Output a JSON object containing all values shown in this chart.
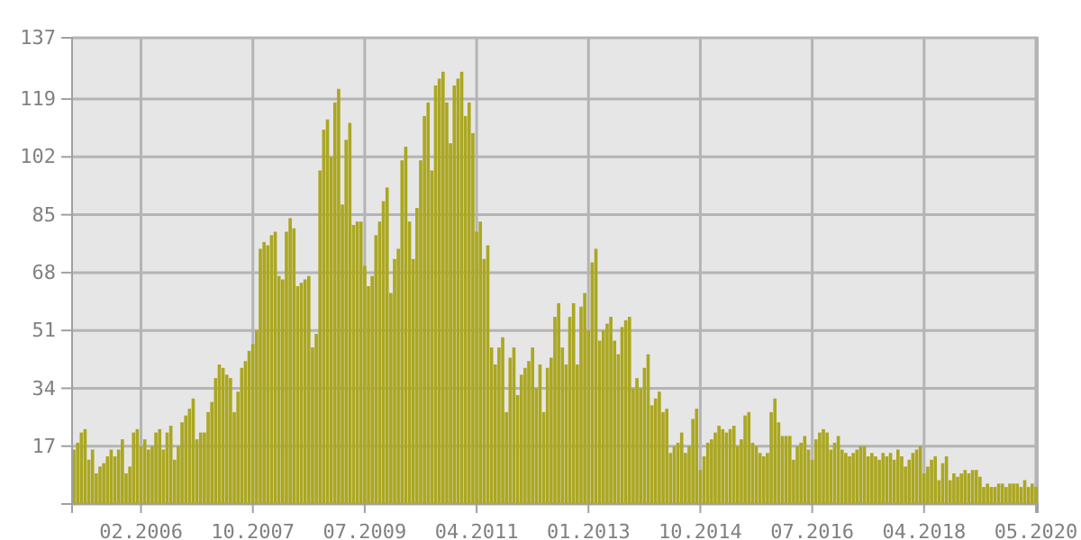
{
  "chart_data": {
    "type": "bar",
    "categories": [
      null,
      null,
      null,
      null,
      null,
      null,
      null,
      null,
      null,
      null,
      null,
      null,
      null,
      null,
      null,
      null,
      null,
      null,
      "02.2006",
      null,
      null,
      null,
      null,
      null,
      null,
      null,
      null,
      null,
      null,
      null,
      null,
      null,
      null,
      null,
      null,
      null,
      null,
      null,
      null,
      null,
      null,
      null,
      null,
      null,
      null,
      null,
      null,
      null,
      "10.2007",
      null,
      null,
      null,
      null,
      null,
      null,
      null,
      null,
      null,
      null,
      null,
      null,
      null,
      null,
      null,
      null,
      null,
      null,
      null,
      null,
      null,
      null,
      null,
      null,
      null,
      null,
      null,
      null,
      null,
      "07.2009",
      null,
      null,
      null,
      null,
      null,
      null,
      null,
      null,
      null,
      null,
      null,
      null,
      null,
      null,
      null,
      null,
      null,
      null,
      null,
      null,
      null,
      null,
      null,
      null,
      null,
      null,
      null,
      null,
      null,
      "04.2011",
      null,
      null,
      null,
      null,
      null,
      null,
      null,
      null,
      null,
      null,
      null,
      null,
      null,
      null,
      null,
      null,
      null,
      null,
      null,
      null,
      null,
      null,
      null,
      null,
      null,
      null,
      null,
      null,
      null,
      "01.2013",
      null,
      null,
      null,
      null,
      null,
      null,
      null,
      null,
      null,
      null,
      null,
      null,
      null,
      null,
      null,
      null,
      null,
      null,
      null,
      null,
      null,
      null,
      null,
      null,
      null,
      null,
      null,
      null,
      null,
      "10.2014",
      null,
      null,
      null,
      null,
      null,
      null,
      null,
      null,
      null,
      null,
      null,
      null,
      null,
      null,
      null,
      null,
      null,
      null,
      null,
      null,
      null,
      null,
      null,
      null,
      null,
      null,
      null,
      null,
      null,
      "07.2016",
      null,
      null,
      null,
      null,
      null,
      null,
      null,
      null,
      null,
      null,
      null,
      null,
      null,
      null,
      null,
      null,
      null,
      null,
      null,
      null,
      null,
      null,
      null,
      null,
      null,
      null,
      null,
      null,
      null,
      "04.2018",
      null,
      null,
      null,
      null,
      null,
      null,
      null,
      null,
      null,
      null,
      null,
      null,
      null,
      null,
      null,
      null,
      null,
      null,
      null,
      null,
      null,
      null,
      null,
      null,
      null,
      null,
      null,
      null,
      null,
      "05.2020"
    ],
    "values": [
      16,
      18,
      21,
      22,
      13,
      16,
      9,
      11,
      12,
      14,
      16,
      14,
      16,
      19,
      9,
      11,
      21,
      22,
      17,
      19,
      16,
      17,
      21,
      22,
      16,
      21,
      23,
      13,
      17,
      24,
      26,
      28,
      31,
      19,
      21,
      21,
      27,
      30,
      37,
      41,
      40,
      38,
      37,
      27,
      33,
      40,
      42,
      45,
      47,
      51,
      75,
      77,
      76,
      79,
      80,
      67,
      66,
      80,
      84,
      81,
      64,
      65,
      66,
      67,
      46,
      50,
      98,
      110,
      113,
      102,
      118,
      122,
      88,
      107,
      112,
      82,
      83,
      83,
      70,
      64,
      67,
      79,
      83,
      89,
      93,
      62,
      72,
      75,
      101,
      105,
      83,
      72,
      87,
      101,
      114,
      118,
      98,
      123,
      125,
      127,
      118,
      106,
      123,
      125,
      127,
      114,
      118,
      109,
      80,
      83,
      72,
      76,
      46,
      41,
      46,
      49,
      27,
      43,
      46,
      32,
      38,
      40,
      42,
      46,
      34,
      41,
      27,
      40,
      43,
      55,
      59,
      46,
      41,
      55,
      59,
      41,
      58,
      62,
      51,
      71,
      75,
      48,
      51,
      53,
      55,
      48,
      44,
      52,
      54,
      55,
      34,
      37,
      34,
      40,
      44,
      29,
      31,
      33,
      27,
      28,
      15,
      17,
      18,
      21,
      15,
      17,
      25,
      28,
      10,
      14,
      18,
      19,
      21,
      23,
      22,
      21,
      22,
      23,
      17,
      19,
      26,
      27,
      18,
      17,
      15,
      14,
      15,
      27,
      31,
      24,
      20,
      20,
      20,
      13,
      17,
      18,
      20,
      16,
      13,
      19,
      21,
      22,
      21,
      16,
      18,
      20,
      16,
      15,
      14,
      15,
      16,
      17,
      17,
      14,
      15,
      14,
      13,
      15,
      14,
      15,
      13,
      16,
      14,
      11,
      13,
      15,
      16,
      17,
      9,
      11,
      13,
      14,
      7,
      12,
      14,
      7,
      9,
      8,
      9,
      10,
      9,
      10,
      10,
      8,
      5,
      6,
      5,
      5,
      6,
      6,
      5,
      6,
      6,
      6,
      5,
      7,
      5,
      6,
      5
    ],
    "color": "#aba721",
    "ylim": [
      0,
      137
    ],
    "yticks": [
      {
        "value": 0,
        "label": null
      },
      17,
      34,
      51,
      68,
      85,
      102,
      119,
      137
    ],
    "grid": true
  }
}
